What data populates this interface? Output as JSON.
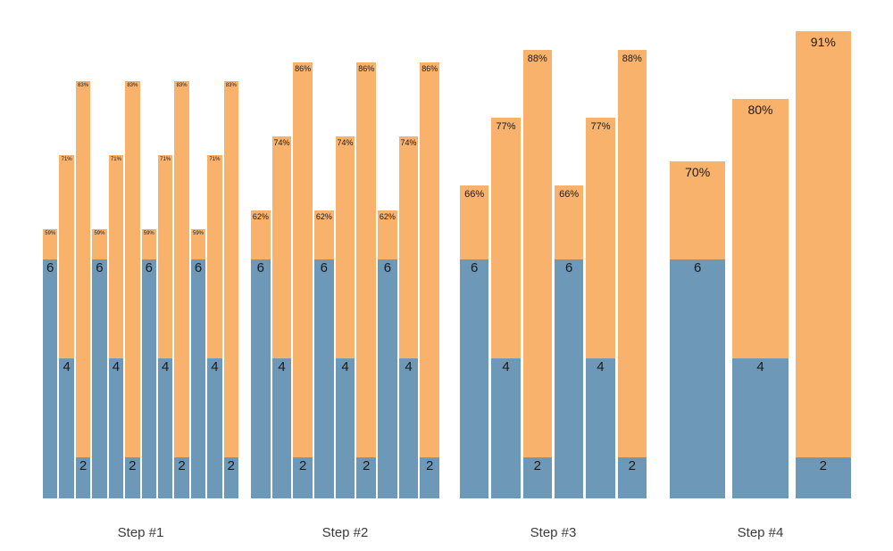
{
  "chart_data": {
    "type": "bar",
    "subtype": "grouped-stacked-small-multiples",
    "title": "",
    "xlabel": "",
    "ylabel": "",
    "legend": "none",
    "grid": false,
    "value_axis": {
      "min": 15.3,
      "max": 93,
      "unit": "%",
      "visible": false
    },
    "colors": {
      "base_segment": "#6e98b7",
      "gain_segment": "#f8b26c",
      "label_text": "#1a1a1a",
      "axis_label_text": "#3c3c3c"
    },
    "groups": [
      {
        "label": "Step #1",
        "bars": [
          {
            "base_label": "6",
            "base_value": 54,
            "total_value": 59,
            "pct_label": "59%"
          },
          {
            "base_label": "4",
            "base_value": 38,
            "total_value": 71,
            "pct_label": "71%"
          },
          {
            "base_label": "2",
            "base_value": 22,
            "total_value": 83,
            "pct_label": "83%"
          },
          {
            "base_label": "6",
            "base_value": 54,
            "total_value": 59,
            "pct_label": "59%"
          },
          {
            "base_label": "4",
            "base_value": 38,
            "total_value": 71,
            "pct_label": "71%"
          },
          {
            "base_label": "2",
            "base_value": 22,
            "total_value": 83,
            "pct_label": "83%"
          },
          {
            "base_label": "6",
            "base_value": 54,
            "total_value": 59,
            "pct_label": "59%"
          },
          {
            "base_label": "4",
            "base_value": 38,
            "total_value": 71,
            "pct_label": "71%"
          },
          {
            "base_label": "2",
            "base_value": 22,
            "total_value": 83,
            "pct_label": "83%"
          },
          {
            "base_label": "6",
            "base_value": 54,
            "total_value": 59,
            "pct_label": "59%"
          },
          {
            "base_label": "4",
            "base_value": 38,
            "total_value": 71,
            "pct_label": "71%"
          },
          {
            "base_label": "2",
            "base_value": 22,
            "total_value": 83,
            "pct_label": "83%"
          }
        ]
      },
      {
        "label": "Step #2",
        "bars": [
          {
            "base_label": "6",
            "base_value": 54,
            "total_value": 62,
            "pct_label": "62%"
          },
          {
            "base_label": "4",
            "base_value": 38,
            "total_value": 74,
            "pct_label": "74%"
          },
          {
            "base_label": "2",
            "base_value": 22,
            "total_value": 86,
            "pct_label": "86%"
          },
          {
            "base_label": "6",
            "base_value": 54,
            "total_value": 62,
            "pct_label": "62%"
          },
          {
            "base_label": "4",
            "base_value": 38,
            "total_value": 74,
            "pct_label": "74%"
          },
          {
            "base_label": "2",
            "base_value": 22,
            "total_value": 86,
            "pct_label": "86%"
          },
          {
            "base_label": "6",
            "base_value": 54,
            "total_value": 62,
            "pct_label": "62%"
          },
          {
            "base_label": "4",
            "base_value": 38,
            "total_value": 74,
            "pct_label": "74%"
          },
          {
            "base_label": "2",
            "base_value": 22,
            "total_value": 86,
            "pct_label": "86%"
          }
        ]
      },
      {
        "label": "Step #3",
        "bars": [
          {
            "base_label": "6",
            "base_value": 54,
            "total_value": 66,
            "pct_label": "66%"
          },
          {
            "base_label": "4",
            "base_value": 38,
            "total_value": 77,
            "pct_label": "77%"
          },
          {
            "base_label": "2",
            "base_value": 22,
            "total_value": 88,
            "pct_label": "88%"
          },
          {
            "base_label": "6",
            "base_value": 54,
            "total_value": 66,
            "pct_label": "66%"
          },
          {
            "base_label": "4",
            "base_value": 38,
            "total_value": 77,
            "pct_label": "77%"
          },
          {
            "base_label": "2",
            "base_value": 22,
            "total_value": 88,
            "pct_label": "88%"
          }
        ]
      },
      {
        "label": "Step #4",
        "bars": [
          {
            "base_label": "6",
            "base_value": 54,
            "total_value": 70,
            "pct_label": "70%"
          },
          {
            "base_label": "4",
            "base_value": 38,
            "total_value": 80,
            "pct_label": "80%"
          },
          {
            "base_label": "2",
            "base_value": 22,
            "total_value": 91,
            "pct_label": "91%"
          }
        ]
      }
    ]
  }
}
